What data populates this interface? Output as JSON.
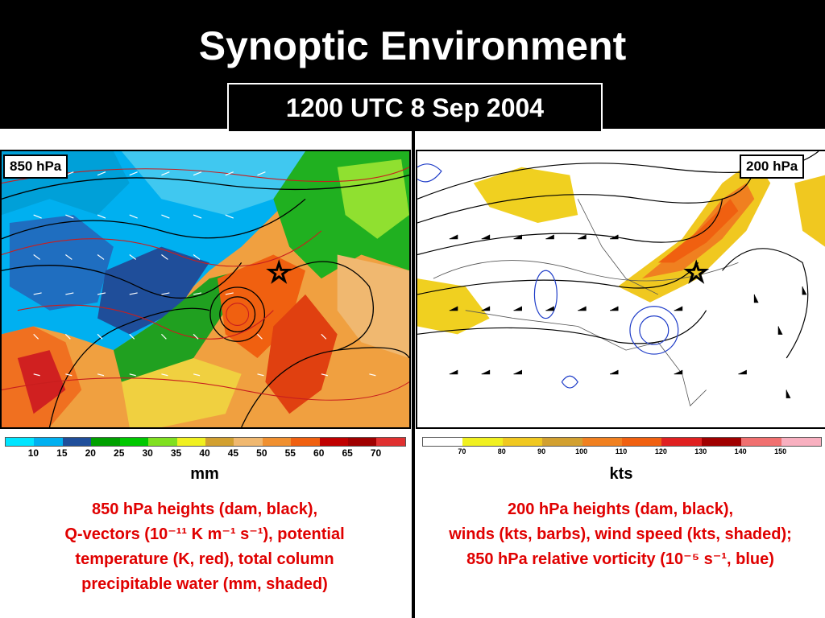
{
  "header": {
    "title": "Synoptic Environment",
    "datetime": "1200 UTC 8 Sep 2004"
  },
  "left_panel": {
    "level_label": "850 hPa",
    "unit_label": "mm",
    "colorbar": {
      "ticks": [
        "10",
        "15",
        "20",
        "25",
        "30",
        "35",
        "40",
        "45",
        "50",
        "55",
        "60",
        "65",
        "70"
      ],
      "colors": [
        "#00e5ff",
        "#00b0f0",
        "#1f4e9a",
        "#00a000",
        "#00c800",
        "#80e020",
        "#f0f020",
        "#d2a030",
        "#f0b870",
        "#f09030",
        "#f06010",
        "#c00000",
        "#a00000",
        "#e03030"
      ]
    },
    "caption_lines": [
      "850 hPa heights (dam, black),",
      "Q-vectors (10⁻¹¹ K m⁻¹ s⁻¹), potential",
      "temperature (K, red), total column",
      "precipitable water (mm, shaded)"
    ]
  },
  "right_panel": {
    "level_label": "200 hPa",
    "unit_label": "kts",
    "colorbar": {
      "ticks": [
        "70",
        "80",
        "90",
        "100",
        "110",
        "120",
        "130",
        "140",
        "150"
      ],
      "colors": [
        "#ffffff",
        "#f0f020",
        "#f0c820",
        "#d2a030",
        "#f08020",
        "#f06010",
        "#e02020",
        "#a00000",
        "#f07070",
        "#f8b0c0"
      ]
    },
    "caption_lines": [
      "200 hPa heights (dam, black),",
      "winds (kts, barbs), wind speed (kts, shaded);",
      "850 hPa relative vorticity (10⁻⁵ s⁻¹, blue)"
    ]
  }
}
